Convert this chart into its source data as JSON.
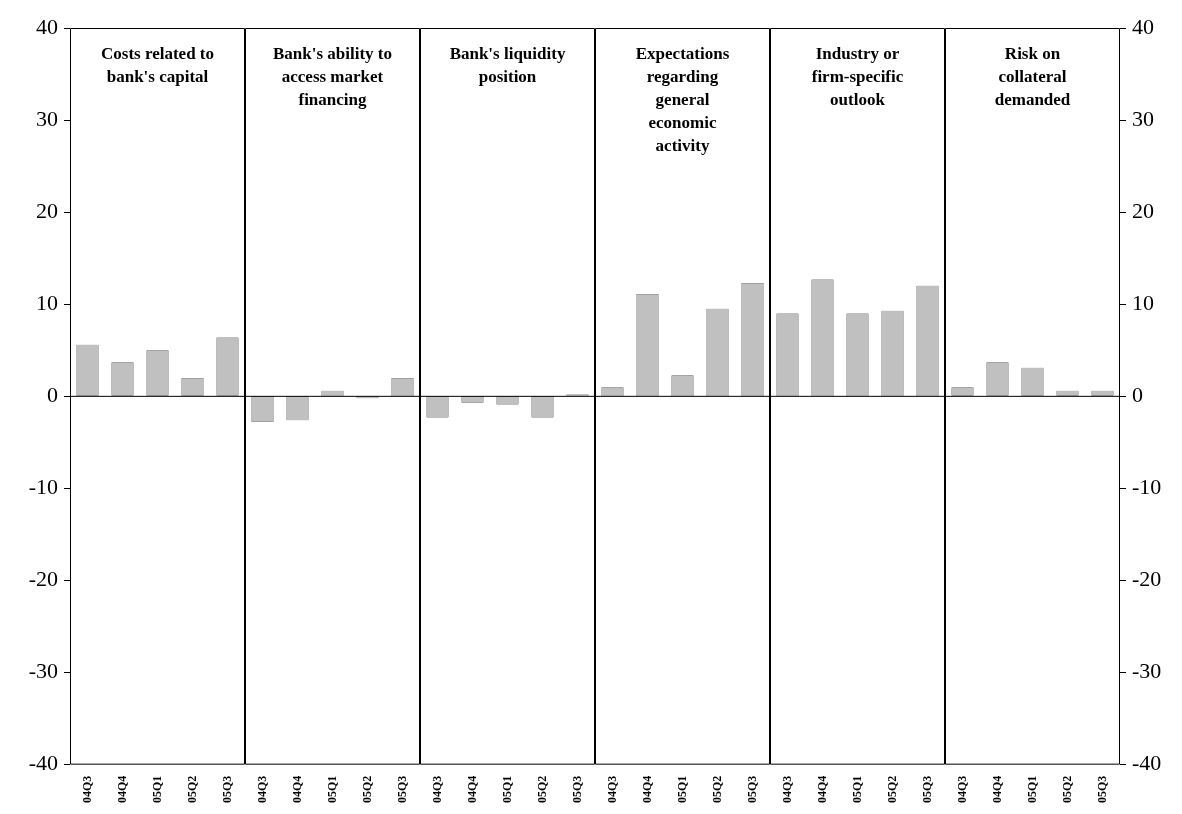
{
  "chart_data": [
    {
      "type": "bar",
      "title": "Costs related to bank's capital",
      "categories": [
        "04Q3",
        "04Q4",
        "05Q1",
        "05Q2",
        "05Q3"
      ],
      "ylim": [
        -40,
        40
      ],
      "yticks": [
        -40,
        -30,
        -20,
        -10,
        0,
        10,
        20,
        30,
        40
      ],
      "series": [
        {
          "color": "#c0c0c0",
          "values": [
            5.6,
            3.7,
            5.0,
            2.0,
            6.4
          ]
        }
      ]
    },
    {
      "type": "bar",
      "title": "Bank's ability to access market financing",
      "categories": [
        "04Q3",
        "04Q4",
        "05Q1",
        "05Q2",
        "05Q3"
      ],
      "ylim": [
        -40,
        40
      ],
      "yticks": [
        -40,
        -30,
        -20,
        -10,
        0,
        10,
        20,
        30,
        40
      ],
      "tick_labels": "x",
      "series": [
        {
          "color": "#c0c0c0",
          "values": [
            -2.8,
            -2.6,
            0.6,
            -0.2,
            2.0
          ]
        }
      ]
    },
    {
      "type": "bar",
      "title": "Bank's liquidity position",
      "categories": [
        "04Q3",
        "04Q4",
        "05Q1",
        "05Q2",
        "05Q3"
      ],
      "ylim": [
        -40,
        40
      ],
      "yticks": [
        -40,
        -30,
        -20,
        -10,
        0,
        10,
        20,
        30,
        40
      ],
      "tick_labels": "x",
      "series": [
        {
          "color": "#c0c0c0",
          "values": [
            -2.3,
            -0.7,
            -0.9,
            -2.3,
            0.2
          ]
        }
      ]
    },
    {
      "type": "bar",
      "title": "Expectations regarding general economic activity",
      "categories": [
        "04Q3",
        "04Q4",
        "05Q1",
        "05Q2",
        "05Q3"
      ],
      "ylim": [
        -40,
        40
      ],
      "yticks": [
        -40,
        -30,
        -20,
        -10,
        0,
        10,
        20,
        30,
        40
      ],
      "tick_labels": "x",
      "series": [
        {
          "color": "#c0c0c0",
          "values": [
            1.0,
            11.1,
            2.3,
            9.5,
            12.3
          ]
        }
      ]
    },
    {
      "type": "bar",
      "title": "Industry or firm-specific outlook",
      "categories": [
        "04Q3",
        "04Q4",
        "05Q1",
        "05Q2",
        "05Q3"
      ],
      "ylim": [
        -40,
        40
      ],
      "yticks": [
        -40,
        -30,
        -20,
        -10,
        0,
        10,
        20,
        30,
        40
      ],
      "tick_labels": "x",
      "series": [
        {
          "color": "#c0c0c0",
          "values": [
            9.0,
            12.7,
            9.0,
            9.3,
            12.0
          ]
        }
      ]
    },
    {
      "type": "bar",
      "title": "Risk on collateral demanded",
      "categories": [
        "04Q3",
        "04Q4",
        "05Q1",
        "05Q2",
        "05Q3"
      ],
      "y2lim": [
        -40,
        40
      ],
      "y2ticks": [
        -40,
        -30,
        -20,
        -10,
        0,
        10,
        20,
        30,
        40
      ],
      "series": [
        {
          "color": "#c0c0c0",
          "axis": "y2",
          "values": [
            1.0,
            3.7,
            3.1,
            0.6,
            0.6
          ]
        }
      ]
    }
  ]
}
